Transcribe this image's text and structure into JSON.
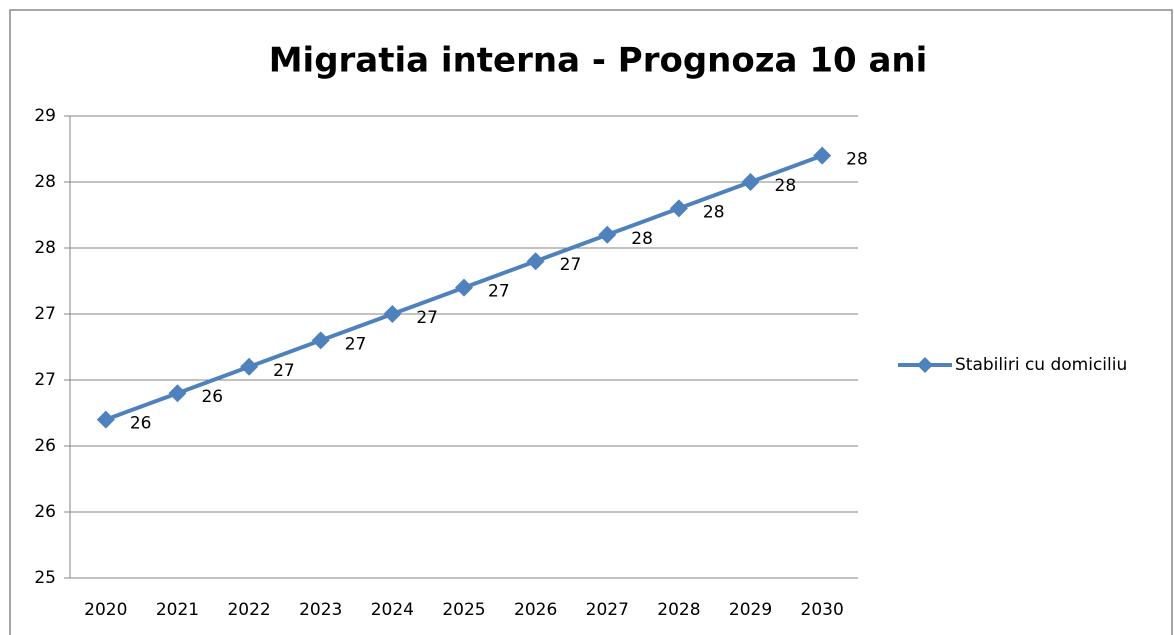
{
  "chart_data": {
    "type": "line",
    "title": "Migratia interna - Prognoza 10 ani",
    "categories": [
      "2020",
      "2021",
      "2022",
      "2023",
      "2024",
      "2025",
      "2026",
      "2027",
      "2028",
      "2029",
      "2030"
    ],
    "series": [
      {
        "name": "Stabiliri cu domiciliu",
        "color": "#4f81bd",
        "values": [
          26.2,
          26.4,
          26.6,
          26.8,
          27.0,
          27.2,
          27.4,
          27.6,
          27.8,
          28.0,
          28.2
        ],
        "value_labels": [
          "26",
          "26",
          "27",
          "27",
          "27",
          "27",
          "27",
          "28",
          "28",
          "28",
          "28"
        ]
      }
    ],
    "ylim": [
      25,
      28.5
    ],
    "yticks": [
      25,
      {
        "value": 25.5,
        "label": "26"
      },
      26,
      {
        "value": 26.5,
        "label": "27"
      },
      27,
      {
        "value": 27.5,
        "label": "28"
      },
      28,
      {
        "value": 28.5,
        "label": "29"
      }
    ],
    "grid": true,
    "legend": "right"
  }
}
